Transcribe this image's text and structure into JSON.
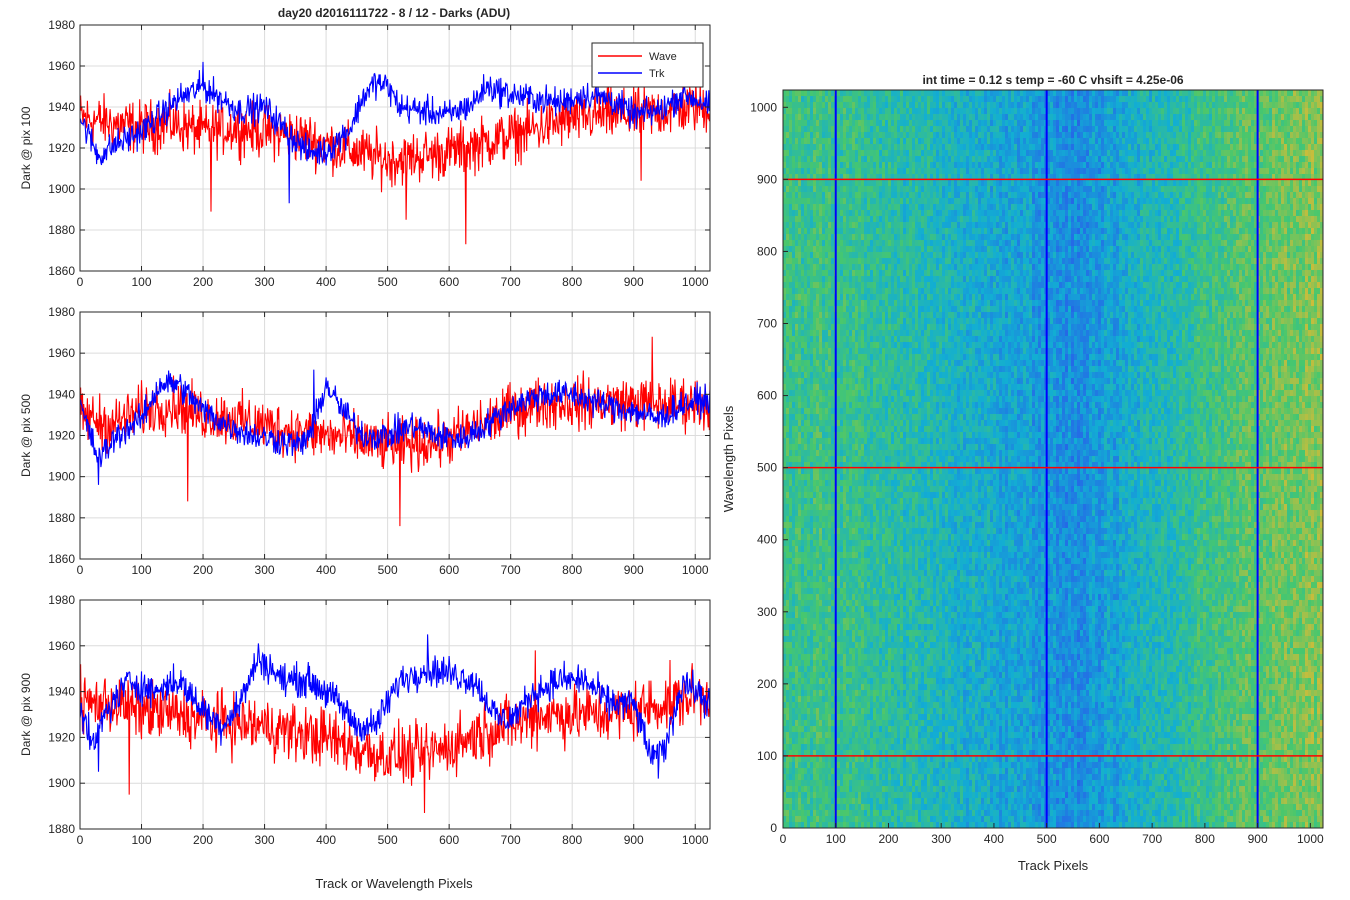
{
  "figure": {
    "title": "day20 d2016111722 - 8 / 12 - Darks (ADU)",
    "shared_xlabel": "Track or Wavelength Pixels"
  },
  "colors": {
    "wave": "#ff0000",
    "trk": "#0000ff",
    "grid": "#dcdcdc"
  },
  "chart_data": [
    {
      "type": "line",
      "ylabel": "Dark @ pix 100",
      "xlim": [
        0,
        1024
      ],
      "ylim": [
        1860,
        1980
      ],
      "xticks": [
        0,
        100,
        200,
        300,
        400,
        500,
        600,
        700,
        800,
        900,
        1000
      ],
      "yticks": [
        1860,
        1880,
        1900,
        1920,
        1940,
        1960,
        1980
      ],
      "grid": true,
      "legend_position": "top-right",
      "series": [
        {
          "name": "Wave",
          "color": "#ff0000",
          "x": [
            0,
            50,
            100,
            150,
            200,
            250,
            300,
            350,
            400,
            450,
            500,
            550,
            600,
            650,
            700,
            750,
            800,
            850,
            900,
            950,
            1000,
            1024
          ],
          "mean": [
            1935,
            1932,
            1930,
            1932,
            1928,
            1930,
            1928,
            1926,
            1922,
            1918,
            1914,
            1916,
            1918,
            1922,
            1926,
            1930,
            1934,
            1936,
            1936,
            1938,
            1940,
            1940
          ],
          "noise": 9,
          "extremes": [
            [
              213,
              1889
            ],
            [
              530,
              1885
            ],
            [
              627,
              1873
            ],
            [
              912,
              1904
            ]
          ]
        },
        {
          "name": "Trk",
          "color": "#0000ff",
          "x": [
            0,
            30,
            60,
            100,
            130,
            160,
            200,
            230,
            260,
            300,
            330,
            370,
            400,
            440,
            460,
            480,
            500,
            520,
            560,
            600,
            640,
            660,
            700,
            740,
            780,
            820,
            860,
            900,
            940,
            980,
            1000,
            1024
          ],
          "mean": [
            1935,
            1916,
            1922,
            1928,
            1936,
            1944,
            1950,
            1944,
            1938,
            1940,
            1930,
            1918,
            1918,
            1930,
            1945,
            1952,
            1950,
            1940,
            1938,
            1936,
            1942,
            1950,
            1946,
            1944,
            1942,
            1946,
            1944,
            1936,
            1938,
            1946,
            1944,
            1940
          ],
          "noise": 5,
          "extremes": [
            [
              340,
              1893
            ],
            [
              200,
              1962
            ]
          ]
        }
      ]
    },
    {
      "type": "line",
      "ylabel": "Dark @ pix 500",
      "xlim": [
        0,
        1024
      ],
      "ylim": [
        1860,
        1980
      ],
      "xticks": [
        0,
        100,
        200,
        300,
        400,
        500,
        600,
        700,
        800,
        900,
        1000
      ],
      "yticks": [
        1860,
        1880,
        1900,
        1920,
        1940,
        1960,
        1980
      ],
      "grid": true,
      "series": [
        {
          "name": "Wave",
          "color": "#ff0000",
          "x": [
            0,
            50,
            100,
            150,
            200,
            250,
            300,
            350,
            400,
            450,
            500,
            550,
            600,
            650,
            700,
            750,
            800,
            850,
            900,
            950,
            1000,
            1024
          ],
          "mean": [
            1930,
            1925,
            1932,
            1935,
            1930,
            1928,
            1925,
            1922,
            1920,
            1918,
            1915,
            1916,
            1918,
            1925,
            1932,
            1936,
            1936,
            1936,
            1936,
            1935,
            1936,
            1936
          ],
          "noise": 9,
          "extremes": [
            [
              520,
              1876
            ],
            [
              930,
              1968
            ],
            [
              175,
              1888
            ]
          ]
        },
        {
          "name": "Trk",
          "color": "#0000ff",
          "x": [
            0,
            30,
            60,
            100,
            130,
            160,
            200,
            240,
            280,
            320,
            360,
            380,
            400,
            420,
            460,
            500,
            540,
            580,
            620,
            660,
            700,
            750,
            800,
            850,
            900,
            940,
            980,
            1024
          ],
          "mean": [
            1935,
            1908,
            1920,
            1928,
            1945,
            1945,
            1932,
            1925,
            1920,
            1918,
            1915,
            1925,
            1945,
            1935,
            1920,
            1920,
            1925,
            1920,
            1918,
            1925,
            1934,
            1940,
            1940,
            1935,
            1932,
            1928,
            1935,
            1938
          ],
          "noise": 5,
          "extremes": [
            [
              30,
              1896
            ],
            [
              380,
              1952
            ]
          ]
        }
      ]
    },
    {
      "type": "line",
      "ylabel": "Dark @ pix 900",
      "xlabel": "Track or Wavelength Pixels",
      "xlim": [
        0,
        1024
      ],
      "ylim": [
        1880,
        1980
      ],
      "xticks": [
        0,
        100,
        200,
        300,
        400,
        500,
        600,
        700,
        800,
        900,
        1000
      ],
      "yticks": [
        1880,
        1900,
        1920,
        1940,
        1960,
        1980
      ],
      "grid": true,
      "series": [
        {
          "name": "Wave",
          "color": "#ff0000",
          "x": [
            0,
            50,
            100,
            150,
            200,
            250,
            300,
            350,
            400,
            450,
            500,
            550,
            600,
            650,
            700,
            750,
            800,
            850,
            900,
            950,
            1000,
            1024
          ],
          "mean": [
            1935,
            1935,
            1932,
            1930,
            1928,
            1926,
            1925,
            1922,
            1920,
            1915,
            1912,
            1912,
            1916,
            1922,
            1926,
            1930,
            1930,
            1930,
            1932,
            1935,
            1938,
            1938
          ],
          "noise": 9,
          "extremes": [
            [
              560,
              1887
            ],
            [
              80,
              1895
            ],
            [
              740,
              1958
            ]
          ]
        },
        {
          "name": "Trk",
          "color": "#0000ff",
          "x": [
            0,
            20,
            40,
            80,
            120,
            160,
            200,
            230,
            260,
            290,
            330,
            370,
            400,
            420,
            450,
            480,
            500,
            520,
            560,
            600,
            640,
            680,
            700,
            740,
            780,
            820,
            860,
            900,
            930,
            950,
            980,
            1000,
            1024
          ],
          "mean": [
            1935,
            1915,
            1930,
            1945,
            1940,
            1945,
            1932,
            1925,
            1935,
            1955,
            1945,
            1945,
            1940,
            1935,
            1925,
            1925,
            1935,
            1945,
            1950,
            1948,
            1945,
            1928,
            1928,
            1940,
            1945,
            1945,
            1935,
            1935,
            1910,
            1915,
            1945,
            1940,
            1935
          ],
          "noise": 5,
          "extremes": [
            [
              30,
              1905
            ],
            [
              565,
              1965
            ],
            [
              940,
              1902
            ]
          ]
        }
      ]
    },
    {
      "type": "heatmap",
      "title": "int time = 0.12 s    temp = -60 C    vhsift = 4.25e-06",
      "xlabel": "Track Pixels",
      "ylabel": "Wavelength Pixels",
      "xlim": [
        0,
        1024
      ],
      "ylim": [
        0,
        1024
      ],
      "xticks": [
        0,
        100,
        200,
        300,
        400,
        500,
        600,
        700,
        800,
        900,
        1000
      ],
      "yticks": [
        0,
        100,
        200,
        300,
        400,
        500,
        600,
        700,
        800,
        900,
        1000
      ],
      "colormap": "parula",
      "column_profile": {
        "x": [
          0,
          100,
          200,
          300,
          400,
          500,
          560,
          600,
          700,
          800,
          900,
          1000,
          1024
        ],
        "value": [
          0.55,
          0.55,
          0.5,
          0.45,
          0.4,
          0.33,
          0.3,
          0.34,
          0.45,
          0.55,
          0.62,
          0.68,
          0.68
        ]
      },
      "vertical_markers": {
        "color": "#0000ff",
        "x": [
          100,
          500,
          900
        ]
      },
      "horizontal_markers": {
        "color": "#ff0000",
        "y": [
          100,
          500,
          900
        ]
      }
    }
  ]
}
